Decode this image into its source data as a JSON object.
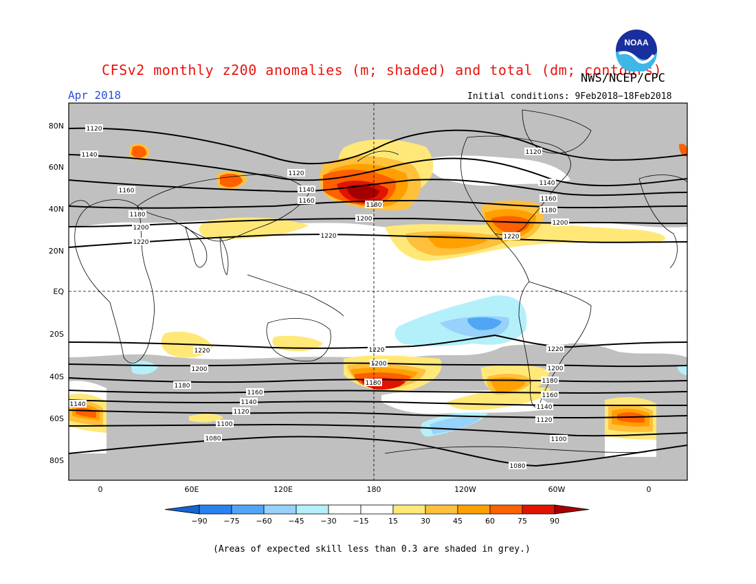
{
  "title": "CFSv2 monthly z200 anomalies (m; shaded) and total (dm; contours)",
  "agency": "NWS/NCEP/CPC",
  "valid_month": "Apr 2018",
  "initial_conditions": "Initial conditions: 9Feb2018−18Feb2018",
  "footnote": "(Areas of expected skill less than 0.3 are shaded in grey.)",
  "logo_text": "NOAA",
  "lat_labels": [
    "80N",
    "60N",
    "40N",
    "20N",
    "EQ",
    "20S",
    "40S",
    "60S",
    "80S"
  ],
  "lon_labels": [
    "0",
    "60E",
    "120E",
    "180",
    "120W",
    "60W",
    "0"
  ],
  "colorbar": {
    "labels": [
      "−90",
      "−75",
      "−60",
      "−45",
      "−30",
      "−15",
      "15",
      "30",
      "45",
      "60",
      "75",
      "90"
    ],
    "colors": [
      "#1464d2",
      "#2882f0",
      "#50a5f5",
      "#96d2fa",
      "#b4f0fa",
      "#ffffff",
      "#ffffff",
      "#ffe878",
      "#ffc03c",
      "#ffa000",
      "#ff6000",
      "#e11400",
      "#a50000"
    ]
  },
  "contours": {
    "north": [
      "1120",
      "1140",
      "1160",
      "1180",
      "1200",
      "1220"
    ],
    "south": [
      "1220",
      "1200",
      "1180",
      "1160",
      "1140",
      "1120",
      "1100",
      "1080"
    ]
  },
  "colors": {
    "title": "#e8120c",
    "month": "#2a4fd8",
    "grey": "#c0c0c0"
  }
}
